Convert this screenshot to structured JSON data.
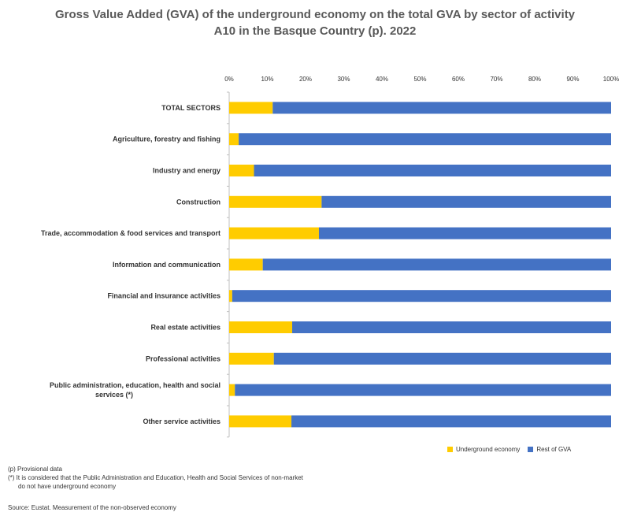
{
  "title_line1": "Gross Value Added (GVA) of the underground economy on the total GVA by sector of activity",
  "title_line2": "A10 in the Basque Country (p). 2022",
  "chart_data": {
    "type": "bar",
    "orientation": "horizontal",
    "stacked": true,
    "percent": true,
    "categories": [
      "TOTAL SECTORS",
      "Agriculture, forestry and fishing",
      "Industry and energy",
      "Construction",
      "Trade, accommodation & food services and transport",
      "Information and communication",
      "Financial and insurance activities",
      "Real estate activities",
      "Professional activities",
      "Public administration, education, health and social services (*)",
      "Other service activities"
    ],
    "series": [
      {
        "name": "Underground economy",
        "color": "#FFCC00",
        "values": [
          11.4,
          2.5,
          6.5,
          24.2,
          23.5,
          8.8,
          0.8,
          16.5,
          11.7,
          1.5,
          16.3
        ]
      },
      {
        "name": "Rest of GVA",
        "color": "#4472C4",
        "values": [
          88.6,
          97.5,
          93.5,
          75.8,
          76.5,
          91.2,
          99.2,
          83.5,
          88.3,
          98.5,
          83.7
        ]
      }
    ],
    "xlim": [
      0,
      100
    ],
    "ticks": [
      "0%",
      "10%",
      "20%",
      "30%",
      "40%",
      "50%",
      "60%",
      "70%",
      "80%",
      "90%",
      "100%"
    ],
    "legend_position": "bottom-right"
  },
  "legend": {
    "underground": "Underground economy",
    "rest": "Rest of GVA"
  },
  "notes": {
    "provisional": "(p) Provisional data",
    "asterisk_line1": "(*) It is considered that the Public Administration and Education, Health and Social Services of non-market",
    "asterisk_line2": "do not have underground economy"
  },
  "source": "Source: Eustat. Measurement of the non-observed economy"
}
